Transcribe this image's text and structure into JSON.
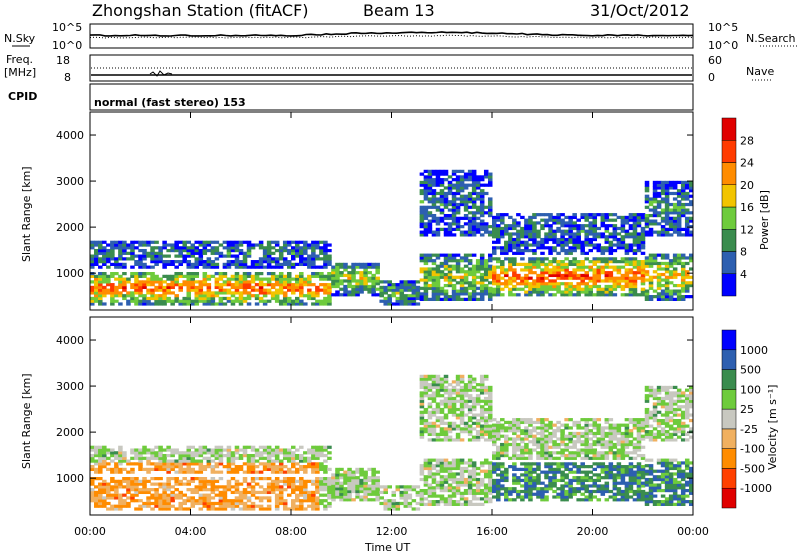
{
  "header": {
    "station": "Zhongshan Station (fitACF)",
    "beam": "Beam 13",
    "date": "31/Oct/2012"
  },
  "nsky_panel": {
    "left_label": "N.Sky",
    "left_ticks": [
      "10^5",
      "10^0"
    ],
    "right_ticks": [
      "10^5",
      "10^0"
    ],
    "right_label": "N.Search"
  },
  "freq_panel": {
    "label_line1": "Freq.",
    "label_line2": "[MHz]",
    "left_ticks": [
      "18",
      "8"
    ],
    "right_ticks": [
      "60",
      "0"
    ],
    "right_label": "Nave"
  },
  "cpid": {
    "label": "CPID",
    "text": "normal (fast stereo) 153"
  },
  "colors": {
    "power": [
      "#0000ff",
      "#2d5fb0",
      "#3a8c4e",
      "#6ecb3c",
      "#f2c400",
      "#ff8c00",
      "#ff3b00",
      "#e00000"
    ],
    "velocity": [
      "#e00000",
      "#ff4000",
      "#ff8c00",
      "#f0b060",
      "#c8c8c0",
      "#6ecb3c",
      "#3a8c4e",
      "#2d5fb0",
      "#0000ff"
    ]
  },
  "chart_data": [
    {
      "type": "heatmap",
      "name_key": "power",
      "ylabel": "Slant Range [km]",
      "ylim": [
        200,
        4500
      ],
      "yticks": [
        "1000",
        "2000",
        "3000",
        "4000"
      ],
      "ytick_values": [
        1000,
        2000,
        3000,
        4000
      ],
      "xlim_hours": [
        0,
        24
      ],
      "colorbar_label": "Power [dB]",
      "colorbar_ticks": [
        "28",
        "24",
        "20",
        "16",
        "12",
        "8",
        "4"
      ],
      "colorbar_range": [
        0,
        32
      ]
    },
    {
      "type": "heatmap",
      "name_key": "velocity",
      "ylabel": "Slant Range [km]",
      "ylim": [
        200,
        4500
      ],
      "yticks": [
        "1000",
        "2000",
        "3000",
        "4000"
      ],
      "ytick_values": [
        1000,
        2000,
        3000,
        4000
      ],
      "xlim_hours": [
        0,
        24
      ],
      "colorbar_label": "Velocity [m s⁻¹]",
      "colorbar_ticks": [
        "1000",
        "500",
        "100",
        "25",
        "-25",
        "-100",
        "-500",
        "-1000"
      ]
    }
  ],
  "xaxis": {
    "ticks": [
      "00:00",
      "04:00",
      "08:00",
      "12:00",
      "16:00",
      "20:00",
      "00:00"
    ],
    "label": "Time UT"
  }
}
